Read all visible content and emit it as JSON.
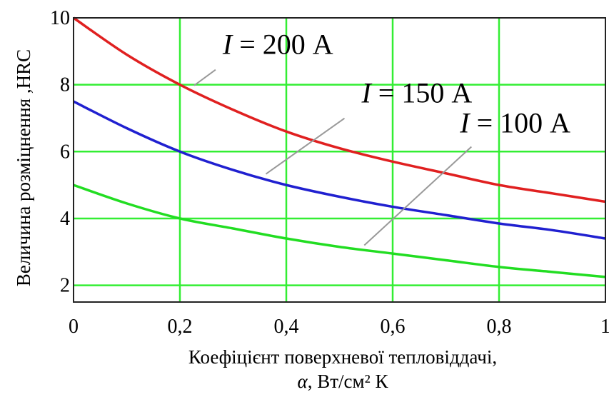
{
  "chart_data": {
    "type": "line",
    "title": "",
    "xlabel_line1": "Коефіцієнт поверхневої тепловіддачі,",
    "xlabel_line2_symbol": "α",
    "xlabel_line2_rest": ", Вт/см² К",
    "ylabel": "Величина розміцнення ,HRC",
    "xlim": [
      0,
      1
    ],
    "ylim": [
      1.5,
      10
    ],
    "x_ticks": [
      0,
      0.2,
      0.4,
      0.6,
      0.8,
      1
    ],
    "x_tick_labels": [
      "0",
      "0,2",
      "0,4",
      "0,6",
      "0,8",
      "1"
    ],
    "y_ticks": [
      2,
      4,
      6,
      8,
      10
    ],
    "y_tick_labels": [
      "2",
      "4",
      "6",
      "8",
      "10"
    ],
    "grid": true,
    "x": [
      0,
      0.1,
      0.2,
      0.3,
      0.4,
      0.5,
      0.6,
      0.7,
      0.8,
      0.9,
      1.0
    ],
    "series": [
      {
        "label_symbol": "I",
        "label_rest": " = 200 А",
        "color": "#e02020",
        "values": [
          10.0,
          8.9,
          8.0,
          7.25,
          6.6,
          6.1,
          5.7,
          5.35,
          5.0,
          4.75,
          4.5
        ]
      },
      {
        "label_symbol": "I",
        "label_rest": " = 150 А",
        "color": "#2020d0",
        "values": [
          7.5,
          6.7,
          6.0,
          5.45,
          5.0,
          4.65,
          4.35,
          4.1,
          3.85,
          3.65,
          3.4
        ]
      },
      {
        "label_symbol": "I",
        "label_rest": " = 100 А",
        "color": "#22dd22",
        "values": [
          5.0,
          4.45,
          4.0,
          3.7,
          3.4,
          3.15,
          2.95,
          2.75,
          2.55,
          2.4,
          2.25
        ]
      }
    ],
    "annotations": [
      {
        "series": 0,
        "at_x": 0.22
      },
      {
        "series": 1,
        "at_x": 0.355
      },
      {
        "series": 2,
        "at_x": 0.54
      }
    ]
  }
}
